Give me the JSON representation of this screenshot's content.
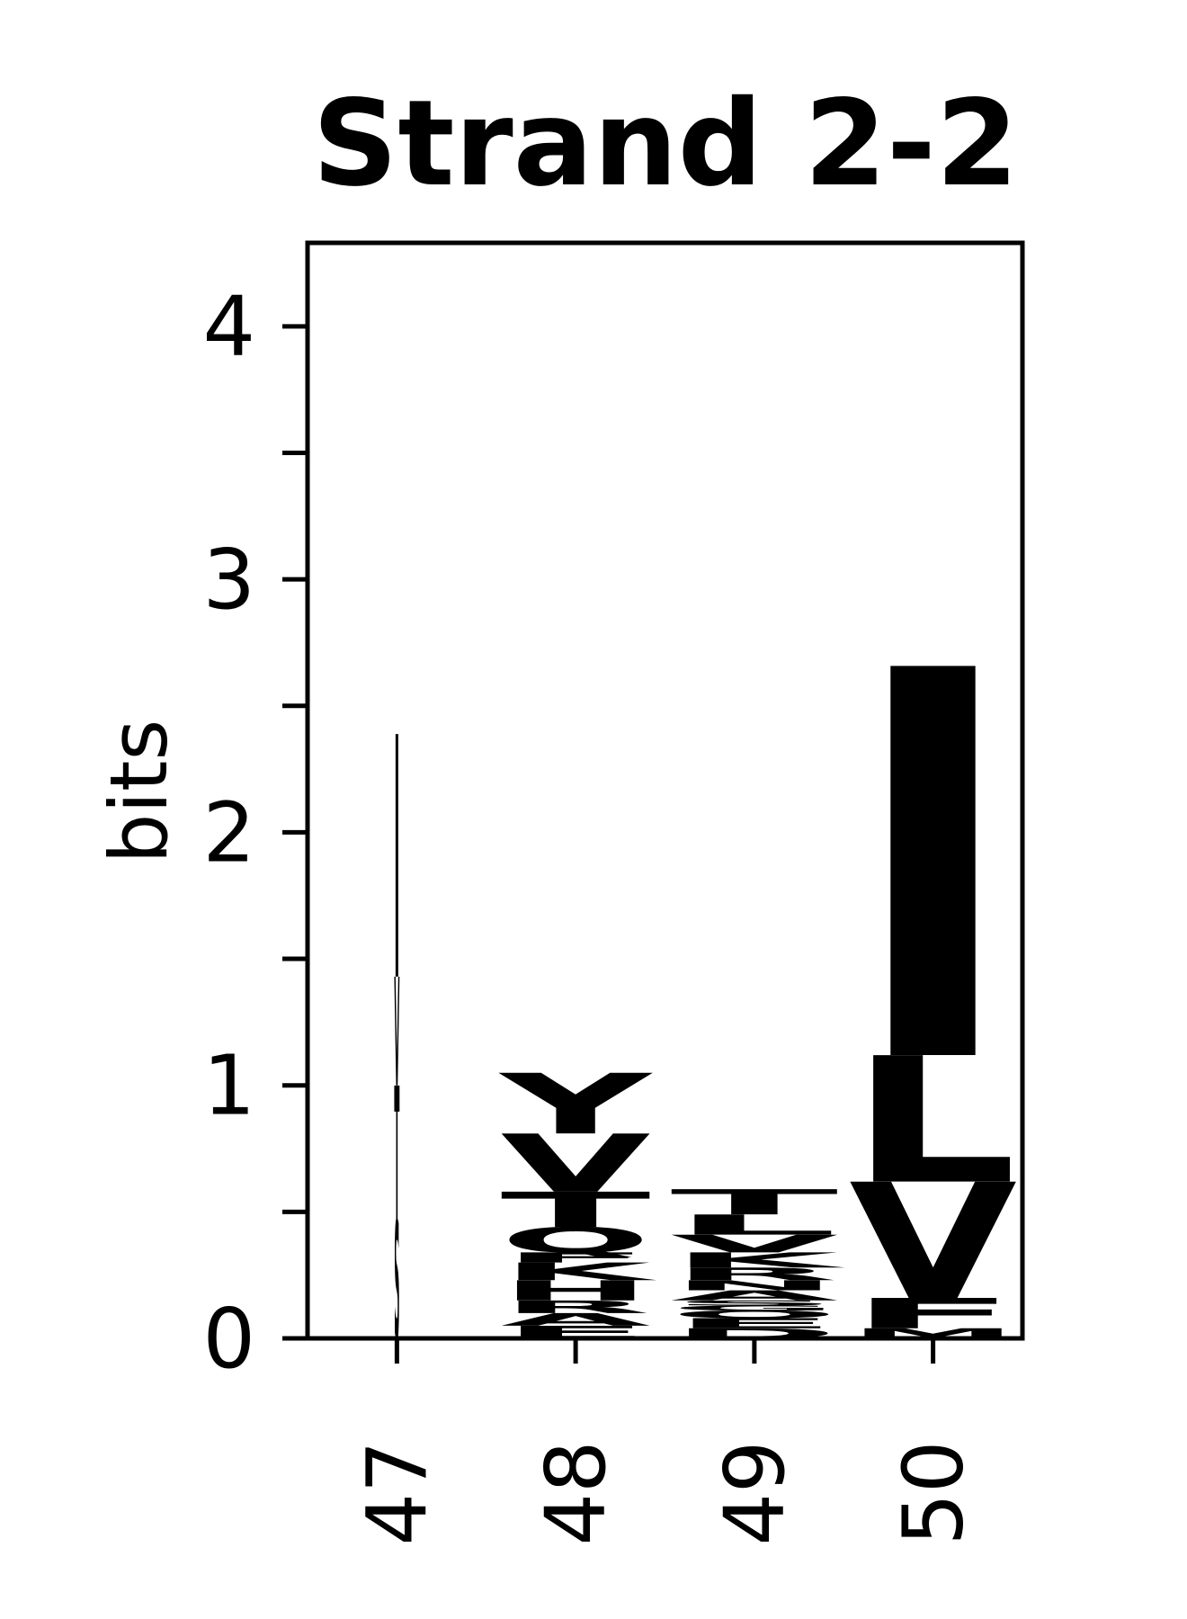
{
  "chart_data": {
    "type": "logo",
    "title": "Strand 2-2",
    "y_label": "bits",
    "ylim": [
      0,
      4.33
    ],
    "yticks": [
      0,
      1,
      2,
      3,
      4
    ],
    "minor_yticks": [
      0.5,
      1.5,
      2.5,
      3.5
    ],
    "stacks": [
      {
        "position": "47",
        "width": 0.03,
        "letters": [
          {
            "letter": "S",
            "color": "#22d42e",
            "height": 0.47
          },
          {
            "letter": "T",
            "color": "#22d42e",
            "height": 0.53
          },
          {
            "letter": "V",
            "color": "#000000",
            "height": 0.43
          },
          {
            "letter": "I",
            "color": "#d0101c",
            "height": 0.96
          }
        ]
      },
      {
        "position": "48",
        "width": 0.84,
        "letters": [
          {
            "letter": "E",
            "color": "#d0101c",
            "height": 0.05
          },
          {
            "letter": "A",
            "color": "#000000",
            "height": 0.05
          },
          {
            "letter": "R",
            "color": "#0a28c0",
            "height": 0.05
          },
          {
            "letter": "H",
            "color": "#0a28c0",
            "height": 0.08
          },
          {
            "letter": "K",
            "color": "#0a28c0",
            "height": 0.07
          },
          {
            "letter": "F",
            "color": "#000000",
            "height": 0.04
          },
          {
            "letter": "Q",
            "color": "#d024c0",
            "height": 0.1
          },
          {
            "letter": "T",
            "color": "#22d42e",
            "height": 0.14
          },
          {
            "letter": "V",
            "color": "#000000",
            "height": 0.23
          },
          {
            "letter": "Y",
            "color": "#22d42e",
            "height": 0.24
          }
        ]
      },
      {
        "position": "49",
        "width": 0.94,
        "letters": [
          {
            "letter": "D",
            "color": "#d0101c",
            "height": 0.04
          },
          {
            "letter": "E",
            "color": "#d0101c",
            "height": 0.04
          },
          {
            "letter": "Q",
            "color": "#d024c0",
            "height": 0.03
          },
          {
            "letter": "G",
            "color": "#22d42e",
            "height": 0.02
          },
          {
            "letter": "S",
            "color": "#22d42e",
            "height": 0.02
          },
          {
            "letter": "A",
            "color": "#000000",
            "height": 0.04
          },
          {
            "letter": "N",
            "color": "#0a28c0",
            "height": 0.04
          },
          {
            "letter": "R",
            "color": "#0a28c0",
            "height": 0.05
          },
          {
            "letter": "K",
            "color": "#0a28c0",
            "height": 0.06
          },
          {
            "letter": "V",
            "color": "#000000",
            "height": 0.07
          },
          {
            "letter": "L",
            "color": "#000000",
            "height": 0.08
          },
          {
            "letter": "T",
            "color": "#22d42e",
            "height": 0.1
          }
        ]
      },
      {
        "position": "50",
        "width": 0.94,
        "letters": [
          {
            "letter": "M",
            "color": "#000000",
            "height": 0.04
          },
          {
            "letter": "F",
            "color": "#000000",
            "height": 0.12
          },
          {
            "letter": "V",
            "color": "#000000",
            "height": 0.46
          },
          {
            "letter": "L",
            "color": "#000000",
            "height": 0.5
          },
          {
            "letter": "I",
            "color": "#000000",
            "height": 1.54
          }
        ]
      }
    ]
  }
}
